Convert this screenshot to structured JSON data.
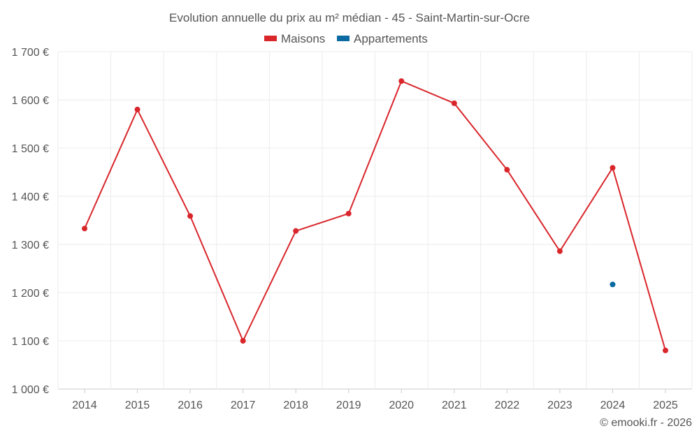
{
  "chart_data": {
    "type": "line",
    "title": "Evolution annuelle du prix au m² médian - 45 - Saint-Martin-sur-Ocre",
    "xlabel": "",
    "ylabel": "",
    "categories": [
      "2014",
      "2015",
      "2016",
      "2017",
      "2018",
      "2019",
      "2020",
      "2021",
      "2022",
      "2023",
      "2024",
      "2025"
    ],
    "ylim": [
      1000,
      1700
    ],
    "yticks": [
      1000,
      1100,
      1200,
      1300,
      1400,
      1500,
      1600,
      1700
    ],
    "ytick_labels": [
      "1 000 €",
      "1 100 €",
      "1 200 €",
      "1 300 €",
      "1 400 €",
      "1 500 €",
      "1 600 €",
      "1 700 €"
    ],
    "grid": true,
    "legend_position": "top-center",
    "series": [
      {
        "name": "Maisons",
        "color": "#d9262b",
        "values": [
          1333,
          1580,
          1359,
          1100,
          1328,
          1364,
          1639,
          1593,
          1455,
          1286,
          1459,
          1080
        ]
      },
      {
        "name": "Appartements",
        "color": "#0a6aa1",
        "values": [
          null,
          null,
          null,
          null,
          null,
          null,
          null,
          null,
          null,
          null,
          1217,
          null
        ]
      }
    ]
  },
  "credit": "© emooki.fr - 2026"
}
